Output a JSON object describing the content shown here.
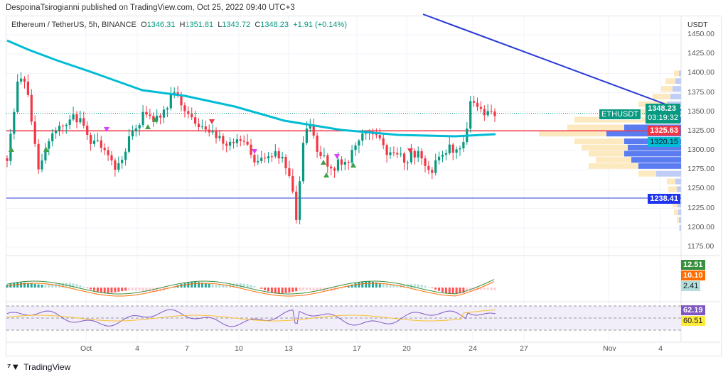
{
  "publisher_line": "DespoinaTsirogianni published on TradingView.com, Oct 25, 2022 09:40 UTC+3",
  "legend": {
    "symbol": "Ethereum / TetherUS, 5h, BINANCE",
    "o_label": "O",
    "o": "1346.31",
    "h_label": "H",
    "h": "1351.81",
    "l_label": "L",
    "l": "1343.72",
    "c_label": "C",
    "c": "1348.23",
    "change": "+1.91 (+0.14%)"
  },
  "price_axis": {
    "currency": "USDT",
    "ticks": [
      "1450.00",
      "1425.00",
      "1400.00",
      "1375.00",
      "1350.00",
      "1325.00",
      "1300.00",
      "1275.00",
      "1250.00",
      "1225.00",
      "1200.00",
      "1175.00"
    ]
  },
  "price_labels": {
    "symbol_tag": "ETHUSDT",
    "last": "1348.23",
    "countdown": "03:19:32",
    "red_level": "1325.63",
    "ma_level": "1320.15",
    "blue_level": "1238.41"
  },
  "macd_labels": {
    "macd": "12.51",
    "signal": "10.10",
    "hist": "2.41"
  },
  "rsi_labels": {
    "rsi": "62.19",
    "ma": "60.51"
  },
  "time_axis": [
    "Oct",
    "4",
    "7",
    "10",
    "13",
    "17",
    "20",
    "24",
    "27",
    "Nov",
    "4"
  ],
  "footer": "TradingView",
  "colors": {
    "up": "#089981",
    "down": "#f23645",
    "ma": "#00bcd4",
    "trend": "#2a3bd6",
    "red_line": "#f23645",
    "blue_line": "#2a3bd6"
  },
  "chart_data": {
    "type": "candlestick",
    "ylim": [
      1175,
      1450
    ],
    "path": [
      [
        10,
        1290
      ],
      [
        25,
        1385
      ],
      [
        35,
        1395
      ],
      [
        45,
        1330
      ],
      [
        55,
        1270
      ],
      [
        70,
        1320
      ],
      [
        90,
        1340
      ],
      [
        110,
        1340
      ],
      [
        130,
        1310
      ],
      [
        150,
        1300
      ],
      [
        165,
        1275
      ],
      [
        185,
        1320
      ],
      [
        200,
        1345
      ],
      [
        220,
        1340
      ],
      [
        245,
        1375
      ],
      [
        260,
        1355
      ],
      [
        275,
        1330
      ],
      [
        300,
        1320
      ],
      [
        320,
        1310
      ],
      [
        340,
        1315
      ],
      [
        360,
        1280
      ],
      [
        380,
        1295
      ],
      [
        400,
        1290
      ],
      [
        412,
        1240
      ],
      [
        417,
        1205
      ],
      [
        425,
        1300
      ],
      [
        435,
        1335
      ],
      [
        450,
        1290
      ],
      [
        470,
        1280
      ],
      [
        490,
        1290
      ],
      [
        505,
        1320
      ],
      [
        520,
        1330
      ],
      [
        535,
        1310
      ],
      [
        550,
        1295
      ],
      [
        570,
        1290
      ],
      [
        590,
        1300
      ],
      [
        605,
        1270
      ],
      [
        620,
        1295
      ],
      [
        640,
        1305
      ],
      [
        655,
        1310
      ],
      [
        662,
        1365
      ],
      [
        672,
        1355
      ],
      [
        685,
        1345
      ],
      [
        697,
        1348
      ]
    ]
  }
}
